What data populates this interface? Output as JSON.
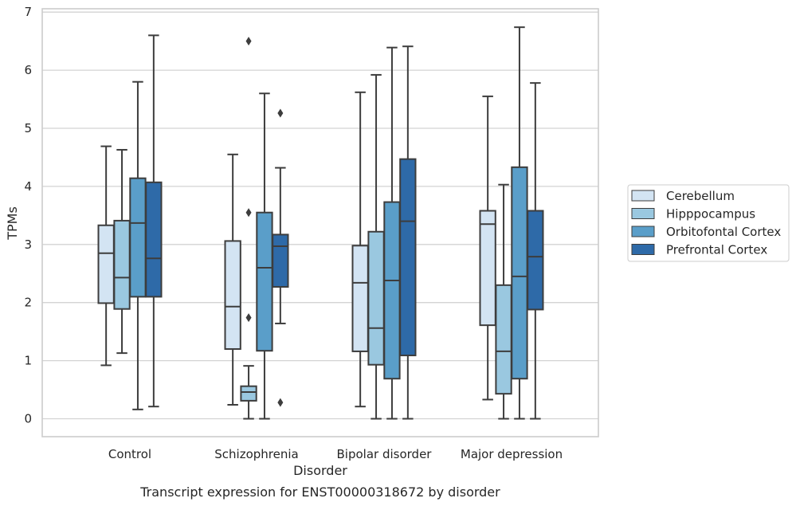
{
  "chart_data": {
    "type": "box",
    "title": "",
    "caption": "Transcript expression for ENST00000318672 by disorder",
    "xlabel": "Disorder",
    "ylabel": "TPMs",
    "ylim": [
      -0.32,
      7.08
    ],
    "yticks": [
      0,
      1,
      2,
      3,
      4,
      5,
      6,
      7
    ],
    "grid": "horizontal",
    "legend_position": "right",
    "categories": [
      "Control",
      "Schizophrenia",
      "Bipolar disorder",
      "Major depression"
    ],
    "series": [
      {
        "name": "Cerebellum",
        "color": "#d3e4f3",
        "boxes": [
          {
            "whisker_low": 0.92,
            "q1": 1.99,
            "median": 2.85,
            "q3": 3.33,
            "whisker_high": 4.69,
            "outliers": []
          },
          {
            "whisker_low": 0.24,
            "q1": 1.2,
            "median": 1.93,
            "q3": 3.06,
            "whisker_high": 4.55,
            "outliers": []
          },
          {
            "whisker_low": 0.21,
            "q1": 1.16,
            "median": 2.34,
            "q3": 2.98,
            "whisker_high": 5.62,
            "outliers": []
          },
          {
            "whisker_low": 0.33,
            "q1": 1.61,
            "median": 3.35,
            "q3": 3.58,
            "whisker_high": 5.55,
            "outliers": []
          }
        ]
      },
      {
        "name": "Hipppocampus",
        "color": "#9ac8e0",
        "boxes": [
          {
            "whisker_low": 1.13,
            "q1": 1.89,
            "median": 2.43,
            "q3": 3.41,
            "whisker_high": 4.63,
            "outliers": []
          },
          {
            "whisker_low": 0.0,
            "q1": 0.31,
            "median": 0.46,
            "q3": 0.56,
            "whisker_high": 0.91,
            "outliers": [
              6.5,
              3.55,
              1.74
            ]
          },
          {
            "whisker_low": 0.0,
            "q1": 0.93,
            "median": 1.56,
            "q3": 3.22,
            "whisker_high": 5.92,
            "outliers": []
          },
          {
            "whisker_low": 0.0,
            "q1": 0.43,
            "median": 1.16,
            "q3": 2.3,
            "whisker_high": 4.03,
            "outliers": []
          }
        ]
      },
      {
        "name": "Orbitofontal Cortex",
        "color": "#5a9ec9",
        "boxes": [
          {
            "whisker_low": 0.16,
            "q1": 2.1,
            "median": 3.37,
            "q3": 4.14,
            "whisker_high": 5.8,
            "outliers": []
          },
          {
            "whisker_low": 0.0,
            "q1": 1.17,
            "median": 2.6,
            "q3": 3.55,
            "whisker_high": 5.6,
            "outliers": []
          },
          {
            "whisker_low": 0.0,
            "q1": 0.69,
            "median": 2.38,
            "q3": 3.73,
            "whisker_high": 6.39,
            "outliers": []
          },
          {
            "whisker_low": 0.0,
            "q1": 0.69,
            "median": 2.45,
            "q3": 4.33,
            "whisker_high": 6.74,
            "outliers": []
          }
        ]
      },
      {
        "name": "Prefrontal Cortex",
        "color": "#2e6aa8",
        "boxes": [
          {
            "whisker_low": 0.21,
            "q1": 2.1,
            "median": 2.76,
            "q3": 4.07,
            "whisker_high": 6.6,
            "outliers": []
          },
          {
            "whisker_low": 1.64,
            "q1": 2.27,
            "median": 2.97,
            "q3": 3.17,
            "whisker_high": 4.32,
            "outliers": [
              5.26,
              0.28
            ]
          },
          {
            "whisker_low": 0.0,
            "q1": 1.09,
            "median": 3.4,
            "q3": 4.47,
            "whisker_high": 6.41,
            "outliers": []
          },
          {
            "whisker_low": 0.0,
            "q1": 1.88,
            "median": 2.79,
            "q3": 3.58,
            "whisker_high": 5.78,
            "outliers": []
          }
        ]
      }
    ]
  }
}
